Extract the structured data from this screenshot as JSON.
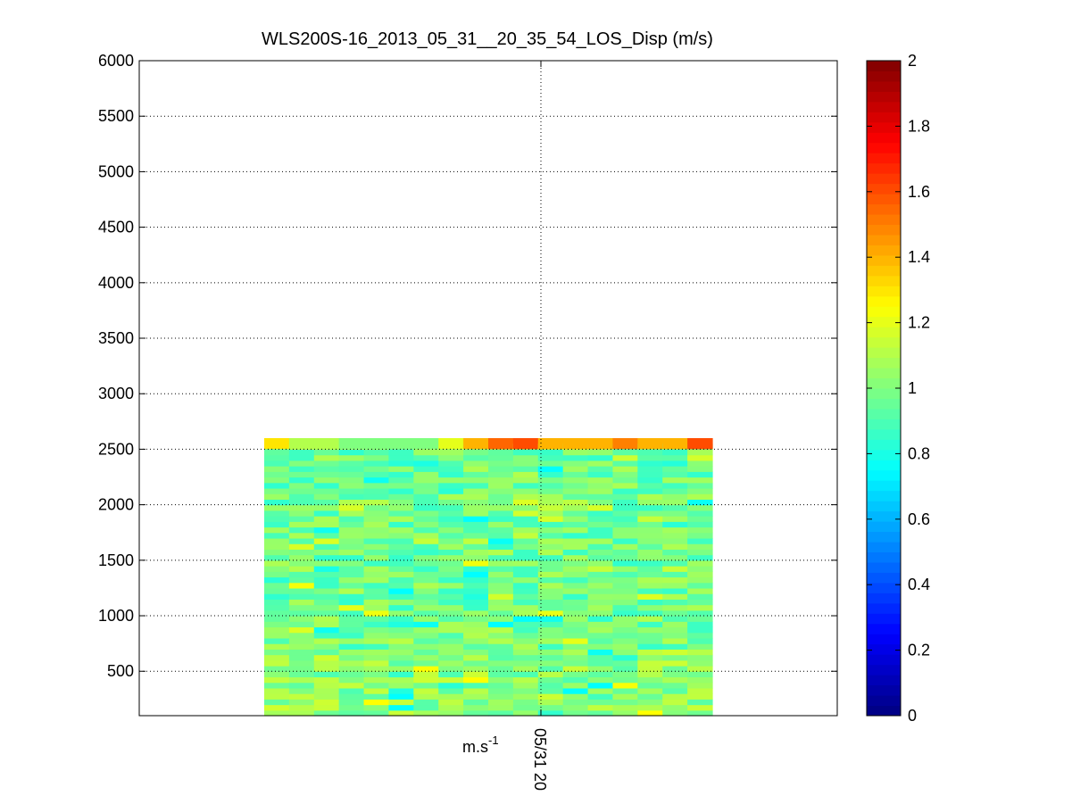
{
  "chart_data": {
    "type": "heatmap",
    "title": "WLS200S-16_2013_05_31__20_35_54_LOS_Disp (m/s)",
    "xlabel": "m.s-1",
    "xlabel_base": "m.s",
    "xlabel_sup": "-1",
    "ylabel": "",
    "x_tick_labels": [
      "05/31 20"
    ],
    "ylim": [
      100,
      6000
    ],
    "y_ticks": [
      500,
      1000,
      1500,
      2000,
      2500,
      3000,
      3500,
      4000,
      4500,
      5000,
      5500,
      6000
    ],
    "grid": true,
    "colormap": "jet",
    "colorbar": {
      "range": [
        0,
        2
      ],
      "ticks": [
        0,
        0.2,
        0.4,
        0.6,
        0.8,
        1,
        1.2,
        1.4,
        1.6,
        1.8,
        2
      ],
      "tick_labels": [
        "0",
        "0.2",
        "0.4",
        "0.6",
        "0.8",
        "1",
        "1.2",
        "1.4",
        "1.6",
        "1.8",
        "2"
      ]
    },
    "data_columns": 18,
    "data_altitude_range": [
      100,
      2600
    ],
    "range_gate_step": 50,
    "value_range_typical": [
      0.75,
      1.25
    ],
    "top_row_values": [
      1.3,
      1.1,
      1.1,
      1.0,
      1.0,
      1.0,
      1.0,
      1.2,
      1.4,
      1.55,
      1.6,
      1.4,
      1.4,
      1.4,
      1.5,
      1.4,
      1.4,
      1.6
    ]
  }
}
